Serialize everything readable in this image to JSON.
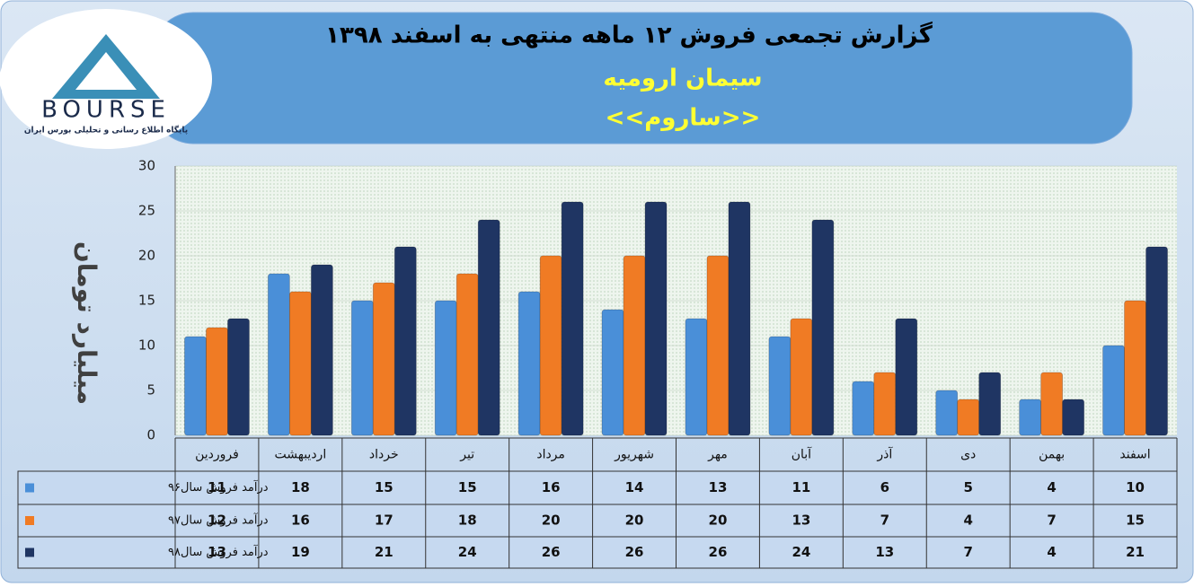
{
  "logo": {
    "name": "BOURSE",
    "tagline": "پایگاه اطلاع رسانی و تحلیلی بورس ایران"
  },
  "chart_data": {
    "type": "bar",
    "title": "گزارش تجمعی فروش  ۱۲ ماهه منتهی به اسفند ۱۳۹۸",
    "subtitle": "سیمان ارومیه",
    "subtitle2": "<<ساروم>>",
    "y_label": "میلیارد تومان",
    "categories": [
      "فروردین",
      "اردیبهشت",
      "خرداد",
      "تیر",
      "مرداد",
      "شهریور",
      "مهر",
      "آبان",
      "آذر",
      "دی",
      "بهمن",
      "اسفند"
    ],
    "series": [
      {
        "name": "درآمد فروش سال۹۶",
        "color": "#4a8fd8",
        "values": [
          11,
          18,
          15,
          15,
          16,
          14,
          13,
          11,
          6,
          5,
          4,
          10
        ]
      },
      {
        "name": "درآمد فروش سال۹۷",
        "color": "#f07b24",
        "values": [
          12,
          16,
          17,
          18,
          20,
          20,
          20,
          13,
          7,
          4,
          7,
          15
        ]
      },
      {
        "name": "درآمد فروش سال۹۸",
        "color": "#1f3563",
        "values": [
          13,
          19,
          21,
          24,
          26,
          26,
          26,
          24,
          13,
          7,
          4,
          21
        ]
      }
    ],
    "ylim": [
      0,
      30
    ],
    "yticks": [
      0,
      5,
      10,
      15,
      20,
      25,
      30
    ],
    "grid": true
  }
}
